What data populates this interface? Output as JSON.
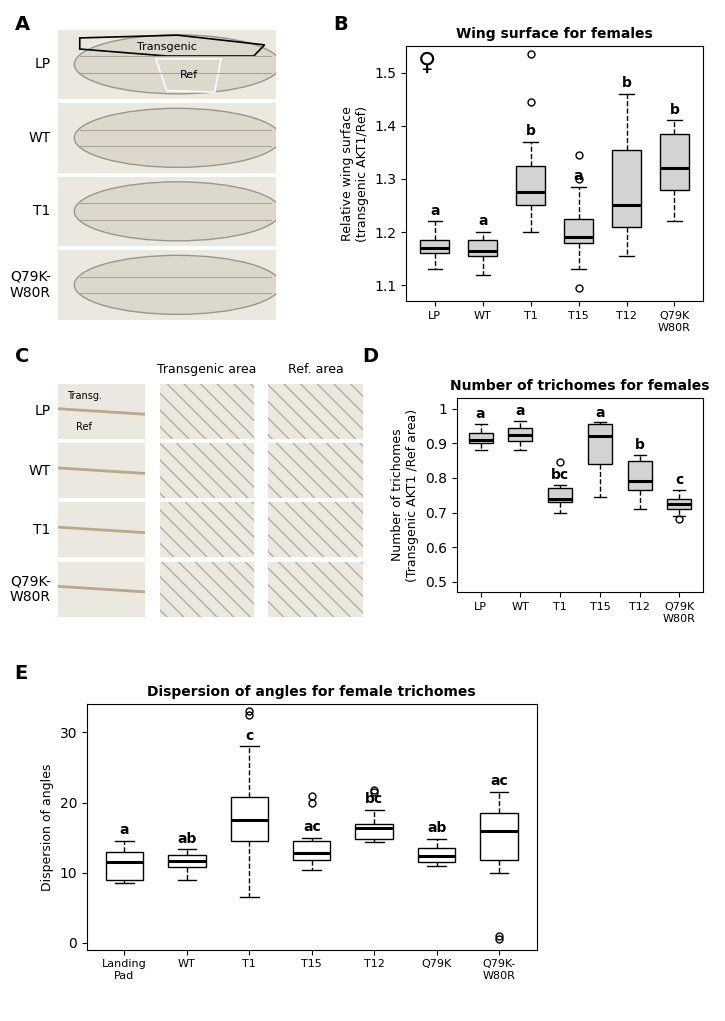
{
  "panel_labels": [
    "A",
    "B",
    "C",
    "D",
    "E"
  ],
  "panel_a": {
    "rows": [
      "LP",
      "WT",
      "T1",
      "Q79K-\nW80R"
    ],
    "region_labels": [
      "Transgenic",
      "Ref"
    ]
  },
  "panel_c": {
    "rows": [
      "LP",
      "WT",
      "T1",
      "Q79K-\nW80R"
    ],
    "column_headers": [
      "Transgenic area",
      "Ref. area"
    ],
    "inset_labels": [
      "Transg.",
      "Ref"
    ]
  },
  "chart_data": [
    {
      "type": "box",
      "title": "Wing surface for females",
      "symbol": "♀",
      "y_label": "Relative wing surface\n(transgenic AKT1/Ref)",
      "categories": [
        "LP",
        "WT",
        "T1",
        "T15",
        "T12",
        "Q79K\nW80R"
      ],
      "ylim": [
        1.07,
        1.55
      ],
      "yticks": [
        1.1,
        1.2,
        1.3,
        1.4,
        1.5
      ],
      "color": "#d3d3d3",
      "boxes": [
        {
          "median": 1.17,
          "q1": 1.16,
          "q3": 1.185,
          "whislo": 1.13,
          "whishi": 1.22,
          "fliers": []
        },
        {
          "median": 1.165,
          "q1": 1.155,
          "q3": 1.185,
          "whislo": 1.12,
          "whishi": 1.2,
          "fliers": []
        },
        {
          "median": 1.275,
          "q1": 1.25,
          "q3": 1.325,
          "whislo": 1.2,
          "whishi": 1.37,
          "fliers": [
            1.445,
            1.535
          ]
        },
        {
          "median": 1.19,
          "q1": 1.18,
          "q3": 1.225,
          "whislo": 1.13,
          "whishi": 1.285,
          "fliers": [
            1.095,
            1.3,
            1.345
          ]
        },
        {
          "median": 1.25,
          "q1": 1.21,
          "q3": 1.355,
          "whislo": 1.155,
          "whishi": 1.46,
          "fliers": []
        },
        {
          "median": 1.32,
          "q1": 1.28,
          "q3": 1.385,
          "whislo": 1.22,
          "whishi": 1.41,
          "fliers": []
        }
      ],
      "group_labels": [
        "a",
        "a",
        "b",
        "a",
        "b",
        "b"
      ]
    },
    {
      "type": "box",
      "title": "Number of trichomes for females",
      "y_label": "Number of trichomes\n(Transgenic AKT1 /Ref area)",
      "categories": [
        "LP",
        "WT",
        "T1",
        "T15",
        "T12",
        "Q79K\nW80R"
      ],
      "ylim": [
        0.47,
        1.03
      ],
      "yticks": [
        0.5,
        0.6,
        0.7,
        0.8,
        0.9,
        1
      ],
      "color": "#d3d3d3",
      "boxes": [
        {
          "median": 0.91,
          "q1": 0.9,
          "q3": 0.93,
          "whislo": 0.88,
          "whishi": 0.955,
          "fliers": []
        },
        {
          "median": 0.925,
          "q1": 0.905,
          "q3": 0.945,
          "whislo": 0.88,
          "whishi": 0.965,
          "fliers": []
        },
        {
          "median": 0.74,
          "q1": 0.73,
          "q3": 0.77,
          "whislo": 0.7,
          "whishi": 0.78,
          "fliers": [
            0.845
          ]
        },
        {
          "median": 0.92,
          "q1": 0.84,
          "q3": 0.955,
          "whislo": 0.745,
          "whishi": 0.96,
          "fliers": []
        },
        {
          "median": 0.79,
          "q1": 0.765,
          "q3": 0.85,
          "whislo": 0.71,
          "whishi": 0.865,
          "fliers": []
        },
        {
          "median": 0.725,
          "q1": 0.71,
          "q3": 0.74,
          "whislo": 0.69,
          "whishi": 0.765,
          "fliers": [
            0.68
          ]
        }
      ],
      "group_labels": [
        "a",
        "a",
        "bc",
        "a",
        "b",
        "c"
      ]
    },
    {
      "type": "box",
      "title": "Dispersion of angles for female trichomes",
      "y_label": "Dispersion of angles",
      "categories": [
        "Landing\nPad",
        "WT",
        "T1",
        "T15",
        "T12",
        "Q79K",
        "Q79K-\nW80R"
      ],
      "ylim": [
        -1,
        34
      ],
      "yticks": [
        0,
        10,
        20,
        30
      ],
      "color": "#ffffff",
      "boxes": [
        {
          "median": 11.5,
          "q1": 9,
          "q3": 13,
          "whislo": 8.5,
          "whishi": 14.5,
          "fliers": []
        },
        {
          "median": 11.7,
          "q1": 10.8,
          "q3": 12.5,
          "whislo": 9,
          "whishi": 13.3,
          "fliers": []
        },
        {
          "median": 17.5,
          "q1": 14.5,
          "q3": 20.8,
          "whislo": 6.5,
          "whishi": 28,
          "fliers": [
            32.5,
            33
          ]
        },
        {
          "median": 12.8,
          "q1": 11.8,
          "q3": 14.5,
          "whislo": 10.3,
          "whishi": 15,
          "fliers": [
            20,
            21
          ]
        },
        {
          "median": 16.3,
          "q1": 14.8,
          "q3": 17,
          "whislo": 14.3,
          "whishi": 19,
          "fliers": [
            21.5,
            21.8
          ]
        },
        {
          "median": 12.4,
          "q1": 11.5,
          "q3": 13.5,
          "whislo": 11,
          "whishi": 14.8,
          "fliers": []
        },
        {
          "median": 16,
          "q1": 11.8,
          "q3": 18.5,
          "whislo": 10,
          "whishi": 21.5,
          "fliers": [
            0.5,
            1
          ]
        }
      ],
      "group_labels": [
        "a",
        "ab",
        "c",
        "ac",
        "bc",
        "ab",
        "ac"
      ]
    }
  ]
}
